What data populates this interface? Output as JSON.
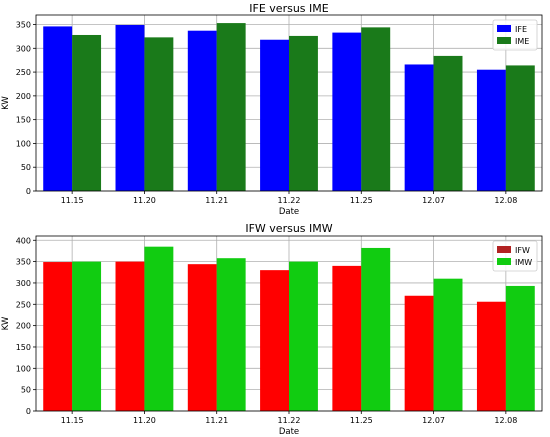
{
  "chart_data": [
    {
      "type": "bar",
      "title": "IFE versus IME",
      "xlabel": "Date",
      "ylabel": "KW",
      "categories": [
        "11.15",
        "11.20",
        "11.21",
        "11.22",
        "11.25",
        "12.07",
        "12.08"
      ],
      "ylim": [
        0,
        370
      ],
      "yticks": [
        0,
        50,
        100,
        150,
        200,
        250,
        300,
        350
      ],
      "grid": true,
      "legend_position": "top-right",
      "series": [
        {
          "name": "IFE",
          "color": "#0000ff",
          "values": [
            346,
            349,
            337,
            318,
            333,
            266,
            255
          ]
        },
        {
          "name": "IME",
          "color": "#1a7a1a",
          "values": [
            328,
            323,
            353,
            326,
            344,
            284,
            264
          ]
        }
      ]
    },
    {
      "type": "bar",
      "title": "IFW versus IMW",
      "xlabel": "Date",
      "ylabel": "KW",
      "categories": [
        "11.15",
        "11.20",
        "11.21",
        "11.22",
        "11.25",
        "12.07",
        "12.08"
      ],
      "ylim": [
        0,
        410
      ],
      "yticks": [
        0,
        50,
        100,
        150,
        200,
        250,
        300,
        350,
        400
      ],
      "grid": true,
      "legend_position": "top-right",
      "series": [
        {
          "name": "IFW",
          "color": "#ff0000",
          "legend_color": "#b22222",
          "values": [
            349,
            350,
            344,
            330,
            340,
            270,
            256
          ]
        },
        {
          "name": "IMW",
          "color": "#11cc11",
          "values": [
            350,
            385,
            358,
            350,
            382,
            310,
            293
          ]
        }
      ]
    }
  ]
}
